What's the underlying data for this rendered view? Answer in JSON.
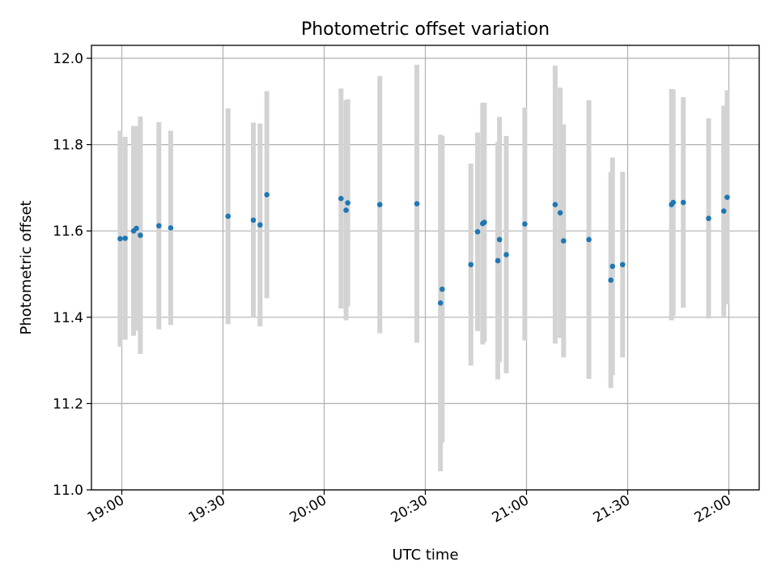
{
  "chart_data": {
    "type": "scatter",
    "title": "Photometric offset variation",
    "xlabel": "UTC time",
    "ylabel": "Photometric offset",
    "xlim": [
      "18:51",
      "22:09"
    ],
    "ylim": [
      11.0,
      12.03
    ],
    "grid": true,
    "x_ticks": [
      "19:00",
      "19:30",
      "20:00",
      "20:30",
      "21:00",
      "21:30",
      "22:00"
    ],
    "y_ticks": [
      "11.0",
      "11.2",
      "11.4",
      "11.6",
      "11.8",
      "12.0"
    ],
    "colors": {
      "point": "#1f77b4",
      "errorbar": "#d3d3d3"
    },
    "series": [
      {
        "points": [
          {
            "x": "18:59:30",
            "y": 11.582,
            "err": 0.25
          },
          {
            "x": "19:01:00",
            "y": 11.583,
            "err": 0.235
          },
          {
            "x": "19:03:30",
            "y": 11.6,
            "err": 0.243
          },
          {
            "x": "19:04:20",
            "y": 11.606,
            "err": 0.237
          },
          {
            "x": "19:05:30",
            "y": 11.59,
            "err": 0.275
          },
          {
            "x": "19:11:00",
            "y": 11.612,
            "err": 0.24
          },
          {
            "x": "19:14:30",
            "y": 11.607,
            "err": 0.225
          },
          {
            "x": "19:31:30",
            "y": 11.634,
            "err": 0.25
          },
          {
            "x": "19:39:00",
            "y": 11.625,
            "err": 0.226
          },
          {
            "x": "19:41:00",
            "y": 11.614,
            "err": 0.235
          },
          {
            "x": "19:43:00",
            "y": 11.684,
            "err": 0.24
          },
          {
            "x": "20:05:00",
            "y": 11.675,
            "err": 0.255
          },
          {
            "x": "20:06:30",
            "y": 11.648,
            "err": 0.255
          },
          {
            "x": "20:07:00",
            "y": 11.665,
            "err": 0.24
          },
          {
            "x": "20:16:30",
            "y": 11.661,
            "err": 0.298
          },
          {
            "x": "20:27:30",
            "y": 11.663,
            "err": 0.322
          },
          {
            "x": "20:34:30",
            "y": 11.433,
            "err": 0.39
          },
          {
            "x": "20:35:00",
            "y": 11.465,
            "err": 0.355
          },
          {
            "x": "20:43:30",
            "y": 11.522,
            "err": 0.234
          },
          {
            "x": "20:45:30",
            "y": 11.598,
            "err": 0.23
          },
          {
            "x": "20:47:00",
            "y": 11.617,
            "err": 0.28
          },
          {
            "x": "20:47:30",
            "y": 11.62,
            "err": 0.277
          },
          {
            "x": "20:51:30",
            "y": 11.531,
            "err": 0.275
          },
          {
            "x": "20:52:00",
            "y": 11.58,
            "err": 0.284
          },
          {
            "x": "20:54:00",
            "y": 11.545,
            "err": 0.275
          },
          {
            "x": "20:59:30",
            "y": 11.616,
            "err": 0.27
          },
          {
            "x": "21:08:30",
            "y": 11.661,
            "err": 0.322
          },
          {
            "x": "21:10:00",
            "y": 11.642,
            "err": 0.29
          },
          {
            "x": "21:11:00",
            "y": 11.577,
            "err": 0.27
          },
          {
            "x": "21:18:30",
            "y": 11.58,
            "err": 0.323
          },
          {
            "x": "21:25:00",
            "y": 11.486,
            "err": 0.25
          },
          {
            "x": "21:25:30",
            "y": 11.518,
            "err": 0.252
          },
          {
            "x": "21:28:30",
            "y": 11.522,
            "err": 0.215
          },
          {
            "x": "21:43:00",
            "y": 11.661,
            "err": 0.268
          },
          {
            "x": "21:43:30",
            "y": 11.666,
            "err": 0.262
          },
          {
            "x": "21:46:30",
            "y": 11.666,
            "err": 0.244
          },
          {
            "x": "21:54:00",
            "y": 11.629,
            "err": 0.232
          },
          {
            "x": "21:58:30",
            "y": 11.646,
            "err": 0.244
          },
          {
            "x": "21:59:30",
            "y": 11.678,
            "err": 0.248
          }
        ]
      }
    ]
  }
}
